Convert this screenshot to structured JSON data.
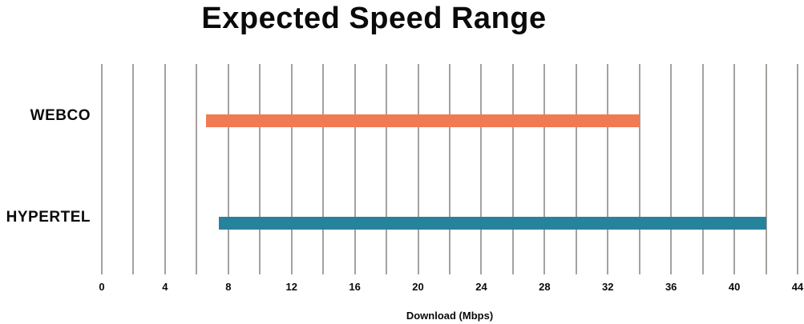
{
  "title": "Expected Speed Range",
  "chart_data": {
    "type": "bar",
    "orientation": "horizontal",
    "variant": "range",
    "title": "Expected Speed Range",
    "categories": [
      "WEBCO",
      "HYPERTEL"
    ],
    "series": [
      {
        "name": "WEBCO",
        "range_min": 6.6,
        "range_max": 34,
        "color": "#f07b52"
      },
      {
        "name": "HYPERTEL",
        "range_min": 7.4,
        "range_max": 42,
        "color": "#27839b"
      }
    ],
    "xlabel": "Download (Mbps)",
    "xlim": [
      0,
      44
    ],
    "gridline_step": 2,
    "xtick_labels": [
      0,
      4,
      8,
      12,
      16,
      20,
      24,
      28,
      32,
      36,
      40,
      44
    ],
    "grid": true,
    "gridline_color": "#a5a19e",
    "legend": "none",
    "background_color": "#ffffff",
    "text_color": "#0a0a0a"
  }
}
